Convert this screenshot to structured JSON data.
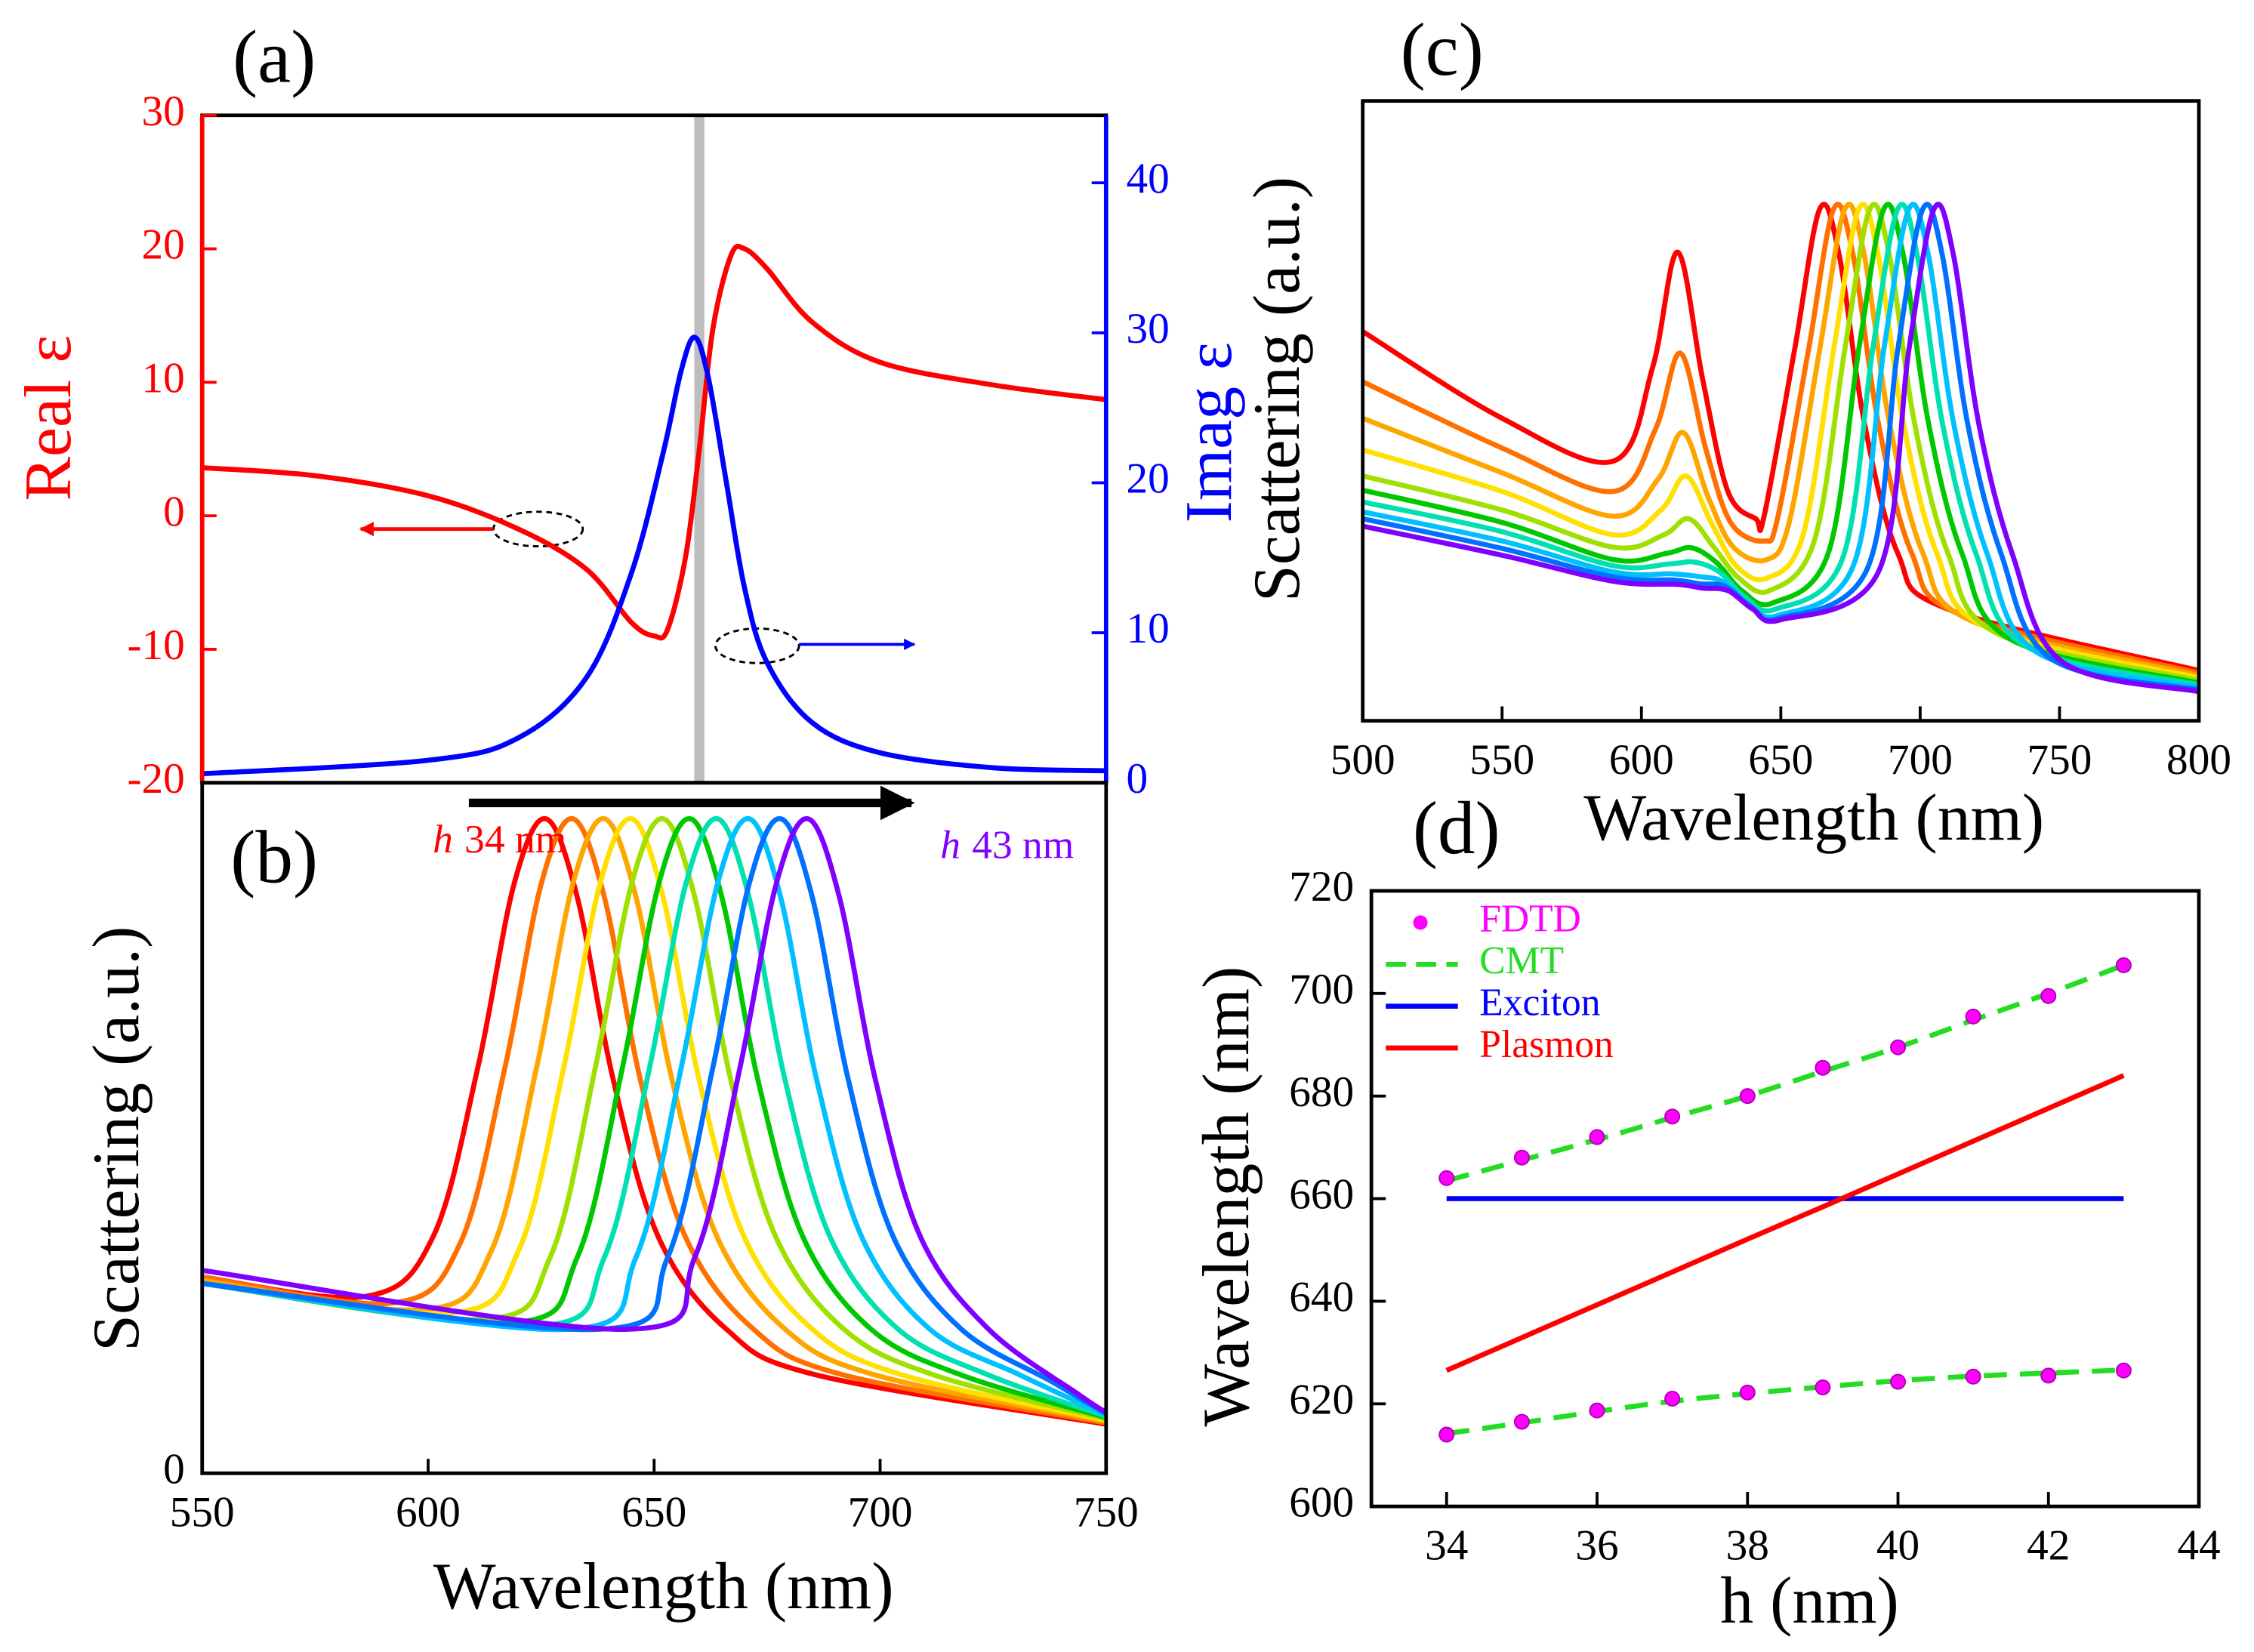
{
  "chart_data": [
    {
      "type": "line",
      "panel_label": "(a)",
      "ylabel": "Real ε",
      "y2label": "Imag ε",
      "xlim": [
        550,
        750
      ],
      "ylim": [
        -20,
        30
      ],
      "yticks": [
        -20,
        -10,
        0,
        10,
        20,
        30
      ],
      "y2lim": [
        0,
        44.5
      ],
      "y2ticks": [
        0,
        10,
        20,
        30,
        40
      ],
      "ycolor": "#ff0000",
      "y2color": "#0000ff",
      "highlight_x": 660,
      "series": [
        {
          "color": "#ff0000",
          "x": [
            550,
            575,
            600,
            620,
            635,
            645,
            650,
            653,
            657,
            660,
            663,
            667,
            670,
            675,
            685,
            700,
            725,
            750
          ],
          "values": [
            3.6,
            3.0,
            1.5,
            -1.0,
            -4.0,
            -8.0,
            -9.0,
            -8.5,
            -3.0,
            5.0,
            14.0,
            19.5,
            20.0,
            18.5,
            14.5,
            11.5,
            9.8,
            8.7
          ]
        },
        {
          "color": "#0000ff",
          "axis": "y2",
          "x": [
            550,
            600,
            620,
            635,
            645,
            652,
            656,
            659,
            662,
            666,
            670,
            675,
            685,
            700,
            725,
            750
          ],
          "values": [
            0.6,
            1.5,
            3.0,
            7.0,
            14.0,
            22.0,
            27.5,
            29.7,
            27.0,
            20.0,
            13.0,
            8.0,
            4.0,
            2.0,
            1.0,
            0.8
          ]
        }
      ]
    },
    {
      "type": "line",
      "panel_label": "(b)",
      "xlabel": "Wavelength (nm)",
      "ylabel": "Scattering (a.u.)",
      "xlim": [
        550,
        750
      ],
      "xticks": [
        550,
        600,
        650,
        700,
        750
      ],
      "ylim": [
        0,
        1.055
      ],
      "yticks": [
        0
      ],
      "annotations": [
        {
          "italic": "h",
          "text": "34 nm",
          "color": "#ff0000"
        },
        {
          "italic": "h",
          "text": "43 nm",
          "color": "#8000ff"
        }
      ],
      "series": [
        {
          "color": "#ff0000",
          "x": [
            550,
            586,
            601,
            611,
            619,
            626,
            633,
            641,
            651,
            666,
            686,
            750
          ],
          "values": [
            0.3,
            0.27,
            0.36,
            0.62,
            0.9,
            1,
            0.88,
            0.6,
            0.36,
            0.22,
            0.15,
            0.075
          ]
        },
        {
          "color": "#ff7000",
          "x": [
            550,
            592,
            607,
            617,
            625,
            632,
            639,
            647,
            657,
            672,
            692,
            750
          ],
          "values": [
            0.3,
            0.26,
            0.35,
            0.62,
            0.9,
            1,
            0.88,
            0.6,
            0.36,
            0.22,
            0.15,
            0.077
          ]
        },
        {
          "color": "#ffa500",
          "x": [
            550,
            599,
            614,
            624,
            632,
            639,
            646,
            654,
            664,
            679,
            699,
            750
          ],
          "values": [
            0.295,
            0.25,
            0.34,
            0.62,
            0.9,
            1,
            0.88,
            0.6,
            0.36,
            0.22,
            0.15,
            0.079
          ]
        },
        {
          "color": "#ffe000",
          "x": [
            550,
            605,
            620,
            630,
            638,
            645,
            652,
            660,
            670,
            685,
            705,
            750
          ],
          "values": [
            0.29,
            0.245,
            0.34,
            0.62,
            0.9,
            1,
            0.88,
            0.6,
            0.36,
            0.22,
            0.15,
            0.081
          ]
        },
        {
          "color": "#a0e000",
          "x": [
            550,
            612,
            627,
            637,
            645,
            652,
            659,
            667,
            677,
            692,
            712,
            750
          ],
          "values": [
            0.29,
            0.235,
            0.33,
            0.62,
            0.9,
            1,
            0.88,
            0.6,
            0.36,
            0.22,
            0.15,
            0.083
          ]
        },
        {
          "color": "#00c800",
          "x": [
            550,
            618,
            633,
            643,
            651,
            658,
            665,
            673,
            683,
            698,
            718,
            750
          ],
          "values": [
            0.29,
            0.23,
            0.33,
            0.62,
            0.9,
            1,
            0.88,
            0.6,
            0.36,
            0.22,
            0.15,
            0.085
          ]
        },
        {
          "color": "#00e0b0",
          "x": [
            550,
            624,
            639,
            649,
            657,
            664,
            671,
            679,
            689,
            704,
            724,
            750
          ],
          "values": [
            0.29,
            0.225,
            0.33,
            0.62,
            0.9,
            1,
            0.88,
            0.6,
            0.36,
            0.22,
            0.15,
            0.087
          ]
        },
        {
          "color": "#00c0ff",
          "x": [
            550,
            631,
            646,
            656,
            664,
            671,
            678,
            686,
            696,
            711,
            731,
            750
          ],
          "values": [
            0.29,
            0.22,
            0.33,
            0.62,
            0.9,
            1,
            0.88,
            0.6,
            0.36,
            0.22,
            0.15,
            0.089
          ]
        },
        {
          "color": "#0070ff",
          "x": [
            550,
            638,
            653,
            663,
            671,
            678,
            685,
            693,
            703,
            718,
            738,
            750
          ],
          "values": [
            0.29,
            0.22,
            0.33,
            0.62,
            0.9,
            1,
            0.88,
            0.6,
            0.36,
            0.22,
            0.14,
            0.091
          ]
        },
        {
          "color": "#8000ff",
          "x": [
            550,
            644,
            659,
            669,
            677,
            684,
            691,
            699,
            709,
            724,
            744,
            750
          ],
          "values": [
            0.31,
            0.22,
            0.33,
            0.62,
            0.9,
            1,
            0.88,
            0.6,
            0.36,
            0.22,
            0.12,
            0.093
          ]
        }
      ]
    },
    {
      "type": "line",
      "panel_label": "(c)",
      "xlabel": "Wavelength (nm)",
      "ylabel": "Scattering (a.u.)",
      "xlim": [
        500,
        800
      ],
      "xticks": [
        500,
        550,
        600,
        650,
        700,
        750,
        800
      ],
      "ylim": [
        0,
        1
      ],
      "series": [
        {
          "color": "#ff0000",
          "x": [
            500,
            550,
            590,
            604,
            613,
            622,
            631,
            641,
            644,
            655,
            664,
            671,
            680,
            692,
            710,
            800
          ],
          "values": [
            0.628,
            0.488,
            0.419,
            0.57,
            0.756,
            0.55,
            0.37,
            0.326,
            0.33,
            0.6,
            0.826,
            0.75,
            0.48,
            0.27,
            0.18,
            0.081
          ]
        },
        {
          "color": "#ff7000",
          "x": [
            500,
            550,
            590,
            605,
            614,
            623,
            632,
            644,
            649,
            660,
            669,
            676,
            685,
            697,
            715,
            800
          ],
          "values": [
            0.547,
            0.44,
            0.37,
            0.47,
            0.593,
            0.44,
            0.32,
            0.29,
            0.33,
            0.6,
            0.826,
            0.75,
            0.48,
            0.27,
            0.17,
            0.077
          ]
        },
        {
          "color": "#ffa500",
          "x": [
            500,
            550,
            590,
            606,
            615,
            624,
            633,
            645,
            653,
            664,
            673,
            680,
            689,
            701,
            719,
            800
          ],
          "values": [
            0.488,
            0.4,
            0.33,
            0.39,
            0.465,
            0.36,
            0.28,
            0.26,
            0.32,
            0.6,
            0.826,
            0.75,
            0.48,
            0.27,
            0.16,
            0.073
          ]
        },
        {
          "color": "#ffe000",
          "x": [
            500,
            550,
            590,
            607,
            616,
            625,
            634,
            645,
            658,
            669,
            678,
            685,
            694,
            706,
            724,
            800
          ],
          "values": [
            0.437,
            0.37,
            0.3,
            0.34,
            0.395,
            0.32,
            0.25,
            0.23,
            0.3,
            0.6,
            0.826,
            0.75,
            0.48,
            0.27,
            0.15,
            0.069
          ]
        },
        {
          "color": "#a0e000",
          "x": [
            500,
            550,
            590,
            608,
            617,
            626,
            635,
            646,
            662,
            673,
            682,
            689,
            698,
            710,
            728,
            800
          ],
          "values": [
            0.395,
            0.34,
            0.28,
            0.3,
            0.326,
            0.28,
            0.23,
            0.21,
            0.29,
            0.6,
            0.826,
            0.75,
            0.48,
            0.27,
            0.14,
            0.065
          ]
        },
        {
          "color": "#00c800",
          "x": [
            500,
            550,
            590,
            609,
            618,
            627,
            636,
            647,
            667,
            678,
            687,
            694,
            703,
            715,
            733,
            800
          ],
          "values": [
            0.372,
            0.32,
            0.26,
            0.27,
            0.279,
            0.255,
            0.21,
            0.19,
            0.27,
            0.6,
            0.826,
            0.75,
            0.48,
            0.27,
            0.13,
            0.061
          ]
        },
        {
          "color": "#00e0b0",
          "x": [
            500,
            550,
            590,
            610,
            619,
            628,
            637,
            648,
            672,
            683,
            692,
            699,
            708,
            720,
            738,
            800
          ],
          "values": [
            0.353,
            0.305,
            0.25,
            0.253,
            0.256,
            0.24,
            0.2,
            0.18,
            0.26,
            0.6,
            0.826,
            0.75,
            0.48,
            0.27,
            0.12,
            0.058
          ]
        },
        {
          "color": "#00c0ff",
          "x": [
            500,
            550,
            590,
            611,
            620,
            629,
            638,
            649,
            676,
            687,
            696,
            703,
            712,
            724,
            742,
            800
          ],
          "values": [
            0.337,
            0.29,
            0.24,
            0.237,
            0.233,
            0.225,
            0.19,
            0.17,
            0.25,
            0.6,
            0.826,
            0.75,
            0.48,
            0.27,
            0.11,
            0.054
          ]
        },
        {
          "color": "#0070ff",
          "x": [
            500,
            550,
            590,
            612,
            621,
            630,
            639,
            649,
            681,
            692,
            701,
            708,
            717,
            729,
            747,
            800
          ],
          "values": [
            0.326,
            0.278,
            0.232,
            0.227,
            0.221,
            0.217,
            0.185,
            0.165,
            0.245,
            0.6,
            0.826,
            0.75,
            0.48,
            0.27,
            0.1,
            0.05
          ]
        },
        {
          "color": "#8000ff",
          "x": [
            500,
            550,
            590,
            613,
            622,
            631,
            640,
            650,
            685,
            696,
            705,
            712,
            721,
            733,
            751,
            800
          ],
          "values": [
            0.314,
            0.267,
            0.225,
            0.22,
            0.214,
            0.21,
            0.18,
            0.163,
            0.24,
            0.6,
            0.826,
            0.75,
            0.48,
            0.27,
            0.095,
            0.047
          ]
        }
      ]
    },
    {
      "type": "line",
      "panel_label": "(d)",
      "xlabel": "h (nm)",
      "ylabel": "Wavelength (nm)",
      "xlim": [
        33,
        44
      ],
      "xticks": [
        34,
        36,
        38,
        40,
        42,
        44
      ],
      "ylim": [
        600,
        720
      ],
      "yticks": [
        600,
        620,
        640,
        660,
        680,
        700,
        720
      ],
      "legend": "upper-left",
      "x": [
        34,
        35,
        36,
        37,
        38,
        39,
        40,
        41,
        42,
        43
      ],
      "series": [
        {
          "name": "FDTD",
          "color": "#ff00ff",
          "style": "markers",
          "branches": [
            [
              664,
              668,
              672,
              676,
              680,
              685.5,
              689.5,
              695.5,
              699.5,
              705.5
            ],
            [
              614,
              616.5,
              618.7,
              621,
              622.2,
              623.2,
              624.3,
              625.3,
              625.5,
              626.5
            ]
          ]
        },
        {
          "name": "CMT",
          "color": "#22dd22",
          "style": "dashed",
          "branches": [
            [
              663.5,
              667.5,
              671.5,
              675.8,
              680,
              684.8,
              689.5,
              694.8,
              700,
              705.5
            ],
            [
              614.2,
              616.3,
              618.5,
              620.5,
              622,
              623.3,
              624.5,
              625.4,
              626,
              626.6
            ]
          ]
        },
        {
          "name": "Exciton",
          "color": "#0000ff",
          "style": "solid",
          "values": [
            660,
            660,
            660,
            660,
            660,
            660,
            660,
            660,
            660,
            660
          ]
        },
        {
          "name": "Plasmon",
          "color": "#ff0000",
          "style": "solid",
          "values": [
            626.5,
            632.9,
            639.3,
            645.7,
            652.1,
            658.4,
            664.8,
            671.2,
            677.6,
            684.0
          ]
        }
      ]
    }
  ]
}
